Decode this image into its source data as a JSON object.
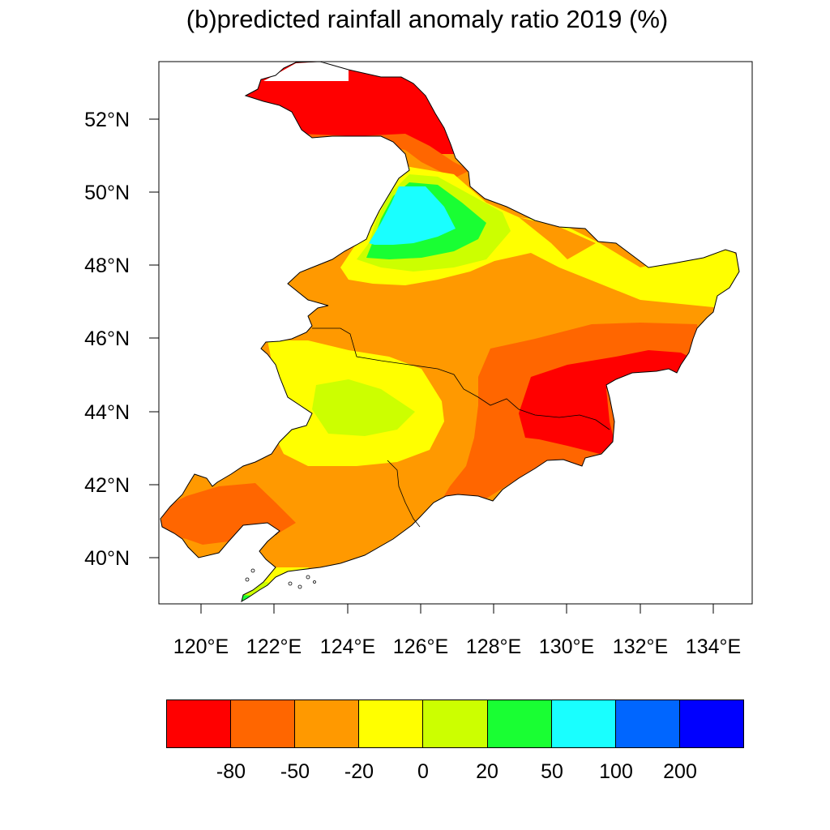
{
  "title": "(b)predicted rainfall anomaly ratio 2019 (%)",
  "map": {
    "x_ticks": [
      "120°E",
      "122°E",
      "124°E",
      "126°E",
      "128°E",
      "130°E",
      "132°E",
      "134°E"
    ],
    "y_ticks": [
      "52°N",
      "50°N",
      "48°N",
      "46°N",
      "44°N",
      "42°N",
      "40°N"
    ],
    "lon_range": [
      118.9,
      135.1
    ],
    "lat_range": [
      38.7,
      53.5
    ]
  },
  "legend": {
    "labels": [
      "-80",
      "-50",
      "-20",
      "0",
      "20",
      "50",
      "100",
      "200"
    ],
    "colors": [
      "#ff0000",
      "#ff6600",
      "#ff9900",
      "#ffff00",
      "#ccff00",
      "#19ff33",
      "#19ffff",
      "#0066ff",
      "#0000ff"
    ]
  }
}
